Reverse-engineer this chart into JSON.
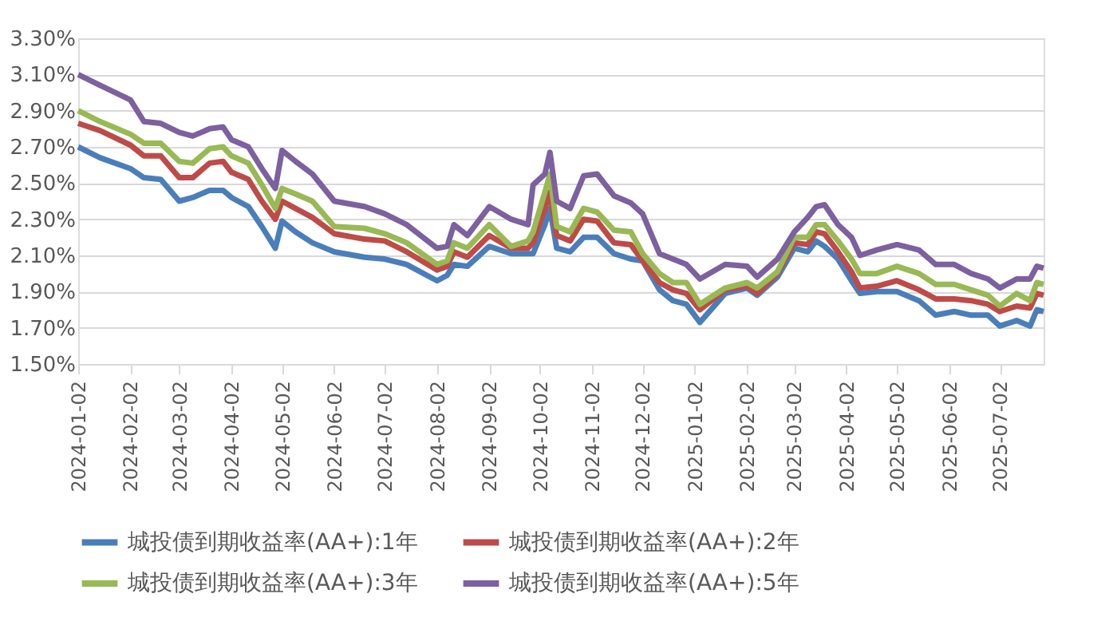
{
  "chart_data": {
    "type": "line",
    "x": [
      "2024-01-02",
      "2024-01-15",
      "2024-02-02",
      "2024-02-10",
      "2024-02-20",
      "2024-03-02",
      "2024-03-10",
      "2024-03-20",
      "2024-03-28",
      "2024-04-02",
      "2024-04-12",
      "2024-04-20",
      "2024-04-28",
      "2024-05-02",
      "2024-05-10",
      "2024-05-20",
      "2024-06-02",
      "2024-06-20",
      "2024-07-02",
      "2024-07-15",
      "2024-08-02",
      "2024-08-08",
      "2024-08-12",
      "2024-08-20",
      "2024-09-02",
      "2024-09-15",
      "2024-09-25",
      "2024-09-28",
      "2024-10-05",
      "2024-10-08",
      "2024-10-12",
      "2024-10-20",
      "2024-10-28",
      "2024-11-05",
      "2024-11-15",
      "2024-11-25",
      "2024-12-02",
      "2024-12-12",
      "2024-12-20",
      "2024-12-28",
      "2025-01-05",
      "2025-01-20",
      "2025-02-02",
      "2025-02-08",
      "2025-02-20",
      "2025-03-02",
      "2025-03-10",
      "2025-03-15",
      "2025-03-20",
      "2025-03-28",
      "2025-04-05",
      "2025-04-10",
      "2025-04-20",
      "2025-05-02",
      "2025-05-15",
      "2025-05-25",
      "2025-06-05",
      "2025-06-15",
      "2025-06-25",
      "2025-07-02",
      "2025-07-12",
      "2025-07-20",
      "2025-07-24",
      "2025-07-28"
    ],
    "series": [
      {
        "name": "城投债到期收益率(AA+):1年",
        "color": "#4a7ebb",
        "values": [
          2.7,
          2.64,
          2.58,
          2.53,
          2.52,
          2.4,
          2.42,
          2.46,
          2.46,
          2.42,
          2.37,
          2.26,
          2.14,
          2.29,
          2.23,
          2.17,
          2.12,
          2.09,
          2.08,
          2.05,
          1.96,
          1.99,
          2.05,
          2.04,
          2.15,
          2.11,
          2.11,
          2.11,
          2.27,
          2.36,
          2.14,
          2.12,
          2.2,
          2.2,
          2.11,
          2.08,
          2.07,
          1.91,
          1.85,
          1.83,
          1.73,
          1.89,
          1.92,
          1.88,
          1.98,
          2.14,
          2.12,
          2.18,
          2.15,
          2.08,
          1.96,
          1.89,
          1.9,
          1.9,
          1.85,
          1.77,
          1.79,
          1.77,
          1.77,
          1.71,
          1.74,
          1.71,
          1.8,
          1.79
        ]
      },
      {
        "name": "城投债到期收益率(AA+):2年",
        "color": "#be4b48",
        "values": [
          2.83,
          2.79,
          2.71,
          2.65,
          2.65,
          2.53,
          2.53,
          2.61,
          2.62,
          2.56,
          2.52,
          2.4,
          2.3,
          2.4,
          2.36,
          2.31,
          2.22,
          2.19,
          2.18,
          2.12,
          2.02,
          2.04,
          2.12,
          2.09,
          2.21,
          2.14,
          2.14,
          2.17,
          2.36,
          2.45,
          2.21,
          2.18,
          2.3,
          2.29,
          2.17,
          2.16,
          2.07,
          1.95,
          1.91,
          1.89,
          1.8,
          1.91,
          1.93,
          1.89,
          2.0,
          2.17,
          2.16,
          2.23,
          2.22,
          2.12,
          2.01,
          1.92,
          1.93,
          1.96,
          1.91,
          1.86,
          1.86,
          1.85,
          1.83,
          1.79,
          1.82,
          1.81,
          1.89,
          1.88
        ]
      },
      {
        "name": "城投债到期收益率(AA+):3年",
        "color": "#98b954",
        "values": [
          2.9,
          2.84,
          2.77,
          2.72,
          2.72,
          2.62,
          2.61,
          2.69,
          2.7,
          2.65,
          2.61,
          2.49,
          2.36,
          2.47,
          2.44,
          2.4,
          2.26,
          2.25,
          2.22,
          2.17,
          2.05,
          2.07,
          2.17,
          2.14,
          2.27,
          2.15,
          2.18,
          2.23,
          2.45,
          2.55,
          2.26,
          2.23,
          2.36,
          2.34,
          2.24,
          2.23,
          2.11,
          2.0,
          1.95,
          1.95,
          1.83,
          1.92,
          1.95,
          1.92,
          2.01,
          2.2,
          2.2,
          2.27,
          2.27,
          2.18,
          2.08,
          2.0,
          2.0,
          2.04,
          2.0,
          1.94,
          1.94,
          1.91,
          1.88,
          1.82,
          1.89,
          1.85,
          1.95,
          1.94
        ]
      },
      {
        "name": "城投债到期收益率(AA+):5年",
        "color": "#7d60a0",
        "values": [
          3.1,
          3.04,
          2.96,
          2.84,
          2.83,
          2.78,
          2.76,
          2.8,
          2.81,
          2.74,
          2.7,
          2.58,
          2.47,
          2.68,
          2.62,
          2.55,
          2.4,
          2.37,
          2.33,
          2.27,
          2.14,
          2.15,
          2.27,
          2.21,
          2.37,
          2.3,
          2.27,
          2.49,
          2.55,
          2.67,
          2.4,
          2.36,
          2.54,
          2.55,
          2.43,
          2.39,
          2.33,
          2.11,
          2.08,
          2.05,
          1.97,
          2.05,
          2.04,
          1.98,
          2.08,
          2.23,
          2.31,
          2.37,
          2.38,
          2.27,
          2.2,
          2.1,
          2.13,
          2.16,
          2.13,
          2.05,
          2.05,
          2.0,
          1.97,
          1.92,
          1.97,
          1.97,
          2.04,
          2.03
        ]
      }
    ],
    "xlim": [
      "2024-01-02",
      "2025-07-28"
    ],
    "xticks": [
      "2024-01-02",
      "2024-02-02",
      "2024-03-02",
      "2024-04-02",
      "2024-05-02",
      "2024-06-02",
      "2024-07-02",
      "2024-08-02",
      "2024-09-02",
      "2024-10-02",
      "2024-11-02",
      "2024-12-02",
      "2025-01-02",
      "2025-02-02",
      "2025-03-02",
      "2025-04-02",
      "2025-05-02",
      "2025-06-02",
      "2025-07-02"
    ],
    "ylim": [
      1.5,
      3.3
    ],
    "yticks": [
      {
        "value": 1.5,
        "label": "1.50%"
      },
      {
        "value": 1.7,
        "label": "1.70%"
      },
      {
        "value": 1.9,
        "label": "1.90%"
      },
      {
        "value": 2.1,
        "label": "2.10%"
      },
      {
        "value": 2.3,
        "label": "2.30%"
      },
      {
        "value": 2.5,
        "label": "2.50%"
      },
      {
        "value": 2.7,
        "label": "2.70%"
      },
      {
        "value": 2.9,
        "label": "2.90%"
      },
      {
        "value": 3.1,
        "label": "3.10%"
      },
      {
        "value": 3.3,
        "label": "3.30%"
      }
    ],
    "grid": "y",
    "legend": "bottom",
    "marker": "none",
    "line_style": "solid"
  }
}
